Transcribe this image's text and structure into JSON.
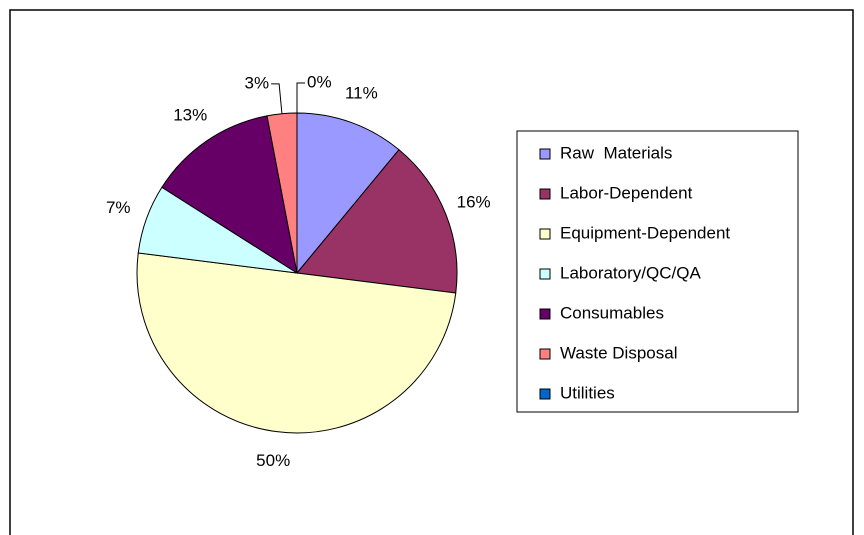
{
  "chart_data": {
    "type": "pie",
    "categories": [
      "Raw  Materials",
      "Labor-Dependent",
      "Equipment-Dependent",
      "Laboratory/QC/QA",
      "Consumables",
      "Waste Disposal",
      "Utilities"
    ],
    "values": [
      11,
      16,
      50,
      7,
      13,
      3,
      0
    ],
    "value_labels": [
      "11%",
      "16%",
      "50%",
      "7%",
      "13%",
      "3%",
      "0%"
    ],
    "colors": [
      "#9999ff",
      "#993366",
      "#ffffcc",
      "#ccffff",
      "#660066",
      "#ff8080",
      "#0066cc"
    ],
    "legend": "right"
  }
}
